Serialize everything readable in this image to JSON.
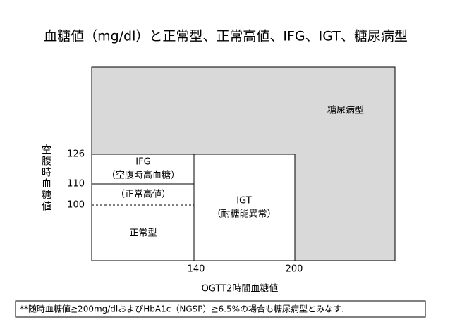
{
  "title": "血糖値（mg/dl）と正常型、正常高値、IFG、IGT、糖尿病型",
  "y_axis": {
    "label": "空腹時血糖値",
    "ticks": [
      "126",
      "110",
      "100"
    ]
  },
  "x_axis": {
    "label": "OGTT2時間血糖値",
    "ticks": [
      "140",
      "200"
    ]
  },
  "regions": {
    "diabetes": "糖尿病型",
    "ifg": "IFG",
    "ifg_sub": "（空腹時高血糖）",
    "high_normal": "（正常高値）",
    "normal": "正常型",
    "igt": "IGT",
    "igt_sub": "（耐糖能異常）"
  },
  "footnote": "**随時血糖値≧200mg/dlおよびHbA1c（NGSP）≧6.5%の場合も糖尿病型とみなす."
}
